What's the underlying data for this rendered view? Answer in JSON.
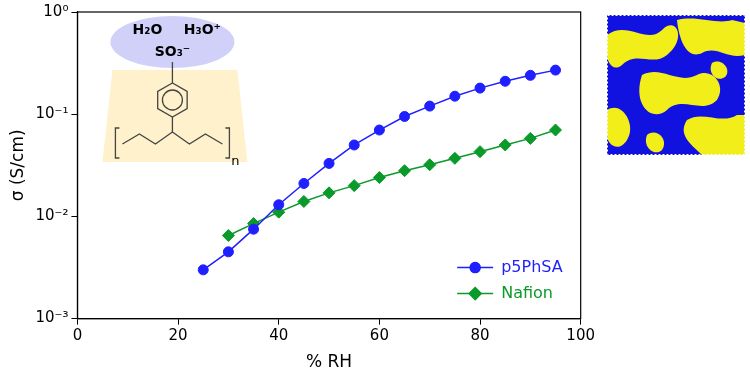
{
  "chart_data": {
    "type": "line",
    "x_label": "% RH",
    "y_label": "σ (S/cm)",
    "annotations": [
      "H₂O",
      "H₃O⁺",
      "SO₃⁻",
      "n"
    ],
    "x": [
      25,
      30,
      35,
      40,
      45,
      50,
      55,
      60,
      65,
      70,
      75,
      80,
      85,
      90,
      95
    ],
    "series": [
      {
        "name": "p5PhSA",
        "color": "#1f1fff",
        "marker": "circle",
        "values": [
          0.003,
          0.0045,
          0.0075,
          0.013,
          0.021,
          0.033,
          0.05,
          0.07,
          0.095,
          0.12,
          0.15,
          0.18,
          0.21,
          0.24,
          0.27
        ]
      },
      {
        "name": "Nafion",
        "color": "#0a9a2a",
        "marker": "diamond",
        "values": [
          null,
          0.0065,
          0.0085,
          0.011,
          0.014,
          0.017,
          0.02,
          0.024,
          0.028,
          0.032,
          0.037,
          0.043,
          0.05,
          0.058,
          0.07
        ]
      }
    ],
    "xlim": [
      0,
      100
    ],
    "xticks": [
      0,
      20,
      40,
      60,
      80,
      100
    ],
    "ylim": [
      0.001,
      1
    ],
    "yticks": [
      {
        "value": 0.001,
        "label": "10⁻³"
      },
      {
        "value": 0.01,
        "label": "10⁻²"
      },
      {
        "value": 0.1,
        "label": "10⁻¹"
      },
      {
        "value": 1,
        "label": "10⁰"
      }
    ],
    "log": "y",
    "grid": false,
    "legend": "lower right"
  }
}
